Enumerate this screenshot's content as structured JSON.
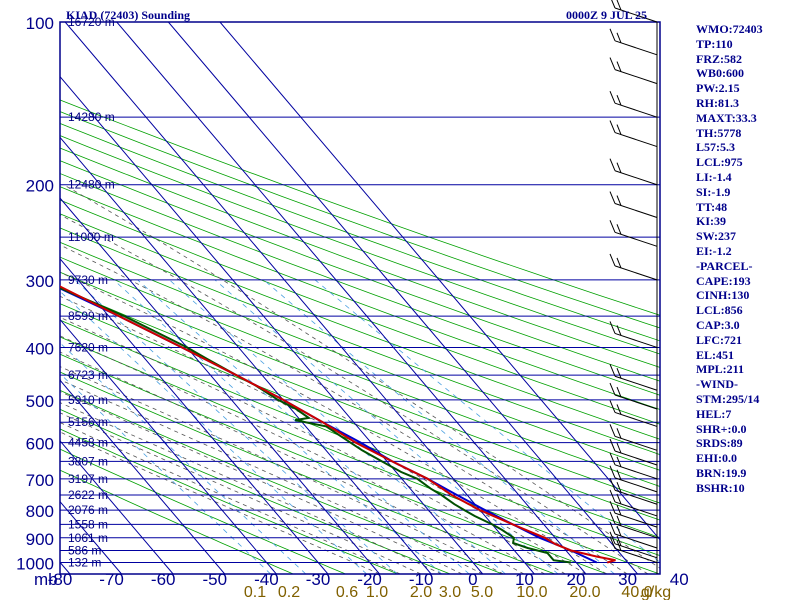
{
  "chart_data": {
    "type": "skew-t",
    "title": "KIAD (72403) Sounding",
    "time": "0000Z  9 JUL 25",
    "pressure_levels": [
      100,
      200,
      300,
      400,
      500,
      600,
      700,
      800,
      900,
      1000
    ],
    "pressure_unit": "mb",
    "temp_ticks": [
      -80,
      -70,
      -60,
      -50,
      -40,
      -30,
      -20,
      -10,
      0,
      10,
      20,
      30,
      40
    ],
    "mixing_ratio_labels": [
      "0.1",
      "0.2",
      "0.6",
      "1.0",
      "2.0",
      "3.0",
      "5.0",
      "10.0",
      "20.0",
      "40.0",
      "g/kg"
    ],
    "heights": [
      {
        "p": 100,
        "label": "16720 m"
      },
      {
        "p": 150,
        "label": "14280 m"
      },
      {
        "p": 200,
        "label": "12480 m"
      },
      {
        "p": 250,
        "label": "11000 m"
      },
      {
        "p": 300,
        "label": "9730 m"
      },
      {
        "p": 350,
        "label": "8599 m"
      },
      {
        "p": 400,
        "label": "7620 m"
      },
      {
        "p": 450,
        "label": "6723 m"
      },
      {
        "p": 500,
        "label": "5910 m"
      },
      {
        "p": 550,
        "label": "5156 m"
      },
      {
        "p": 600,
        "label": "4458 m"
      },
      {
        "p": 650,
        "label": "3807 m"
      },
      {
        "p": 700,
        "label": "3197 m"
      },
      {
        "p": 750,
        "label": "2622 m"
      },
      {
        "p": 800,
        "label": "2076 m"
      },
      {
        "p": 850,
        "label": "1558 m"
      },
      {
        "p": 900,
        "label": "1061 m"
      },
      {
        "p": 950,
        "label": "586 m"
      },
      {
        "p": 1000,
        "label": "132 m"
      }
    ],
    "temperature": [
      [
        1000,
        26
      ],
      [
        990,
        28
      ],
      [
        985,
        27
      ],
      [
        975,
        25
      ],
      [
        950,
        21
      ],
      [
        925,
        19
      ],
      [
        900,
        18
      ],
      [
        875,
        16
      ],
      [
        850,
        14
      ],
      [
        800,
        10
      ],
      [
        750,
        7
      ],
      [
        700,
        5
      ],
      [
        650,
        1
      ],
      [
        600,
        -3
      ],
      [
        550,
        -6
      ],
      [
        500,
        -10
      ],
      [
        450,
        -15
      ],
      [
        400,
        -21
      ],
      [
        350,
        -28
      ],
      [
        300,
        -36
      ],
      [
        250,
        -45
      ],
      [
        200,
        -55
      ],
      [
        150,
        -64
      ],
      [
        120,
        -67
      ],
      [
        100,
        -68
      ]
    ],
    "dewpoint": [
      [
        1000,
        19
      ],
      [
        990,
        16
      ],
      [
        960,
        16
      ],
      [
        940,
        13
      ],
      [
        920,
        11
      ],
      [
        900,
        12
      ],
      [
        870,
        11
      ],
      [
        850,
        10
      ],
      [
        820,
        8
      ],
      [
        800,
        7
      ],
      [
        780,
        6
      ],
      [
        750,
        5
      ],
      [
        730,
        4
      ],
      [
        700,
        3
      ],
      [
        680,
        1
      ],
      [
        650,
        -1
      ],
      [
        620,
        -3
      ],
      [
        600,
        -4
      ],
      [
        580,
        -5
      ],
      [
        560,
        -6
      ],
      [
        545,
        -11
      ],
      [
        540,
        -8
      ],
      [
        520,
        -9
      ],
      [
        500,
        -11
      ],
      [
        470,
        -13
      ],
      [
        450,
        -15
      ],
      [
        420,
        -18
      ],
      [
        400,
        -20
      ],
      [
        350,
        -27
      ],
      [
        300,
        -37
      ],
      [
        280,
        -41
      ],
      [
        250,
        -50
      ],
      [
        220,
        -54
      ],
      [
        200,
        -58
      ],
      [
        170,
        -64
      ],
      [
        150,
        -69
      ],
      [
        130,
        -74
      ],
      [
        110,
        -78
      ],
      [
        100,
        -79
      ]
    ],
    "parcel": [
      [
        1000,
        24
      ],
      [
        950,
        21
      ],
      [
        900,
        17
      ],
      [
        850,
        14
      ],
      [
        800,
        11
      ],
      [
        750,
        8
      ],
      [
        700,
        5
      ],
      [
        650,
        1
      ],
      [
        600,
        -2
      ],
      [
        550,
        -6
      ],
      [
        500,
        -10
      ],
      [
        450,
        -15
      ],
      [
        400,
        -21
      ],
      [
        350,
        -28
      ],
      [
        300,
        -37
      ],
      [
        250,
        -47
      ],
      [
        200,
        -58
      ],
      [
        150,
        -70
      ],
      [
        120,
        -78
      ],
      [
        100,
        -83
      ]
    ],
    "colors": {
      "frame": "#00008b",
      "grid": "#0000a0",
      "temperature": "#cc0000",
      "dewpoint": "#005000",
      "parcel": "#0000cd",
      "dry_adiabat": "#00a000",
      "moist_adiabat": "#555555",
      "mixing_ratio": "#4aa0e0",
      "ratio_label": "#806000"
    },
    "wind_barbs": [
      100,
      115,
      130,
      150,
      170,
      200,
      230,
      260,
      300,
      400,
      480,
      520,
      560,
      620,
      660,
      700,
      740,
      780,
      820,
      860,
      900,
      940,
      980,
      1000
    ]
  },
  "indices": [
    "WMO:72403",
    "TP:110",
    "FRZ:582",
    "WB0:600",
    "PW:2.15",
    "RH:81.3",
    "MAXT:33.3",
    "TH:5778",
    "L57:5.3",
    "LCL:975",
    "LI:-1.4",
    "SI:-1.9",
    "TT:48",
    "KI:39",
    "SW:237",
    "EI:-1.2",
    "-PARCEL-",
    "CAPE:193",
    "CINH:130",
    "LCL:856",
    "CAP:3.0",
    "LFC:721",
    "EL:451",
    "MPL:211",
    "-WIND-",
    "STM:295/14",
    "HEL:7",
    "SHR+:0.0",
    "SRDS:89",
    "EHI:0.0",
    "BRN:19.9",
    "BSHR:10"
  ]
}
